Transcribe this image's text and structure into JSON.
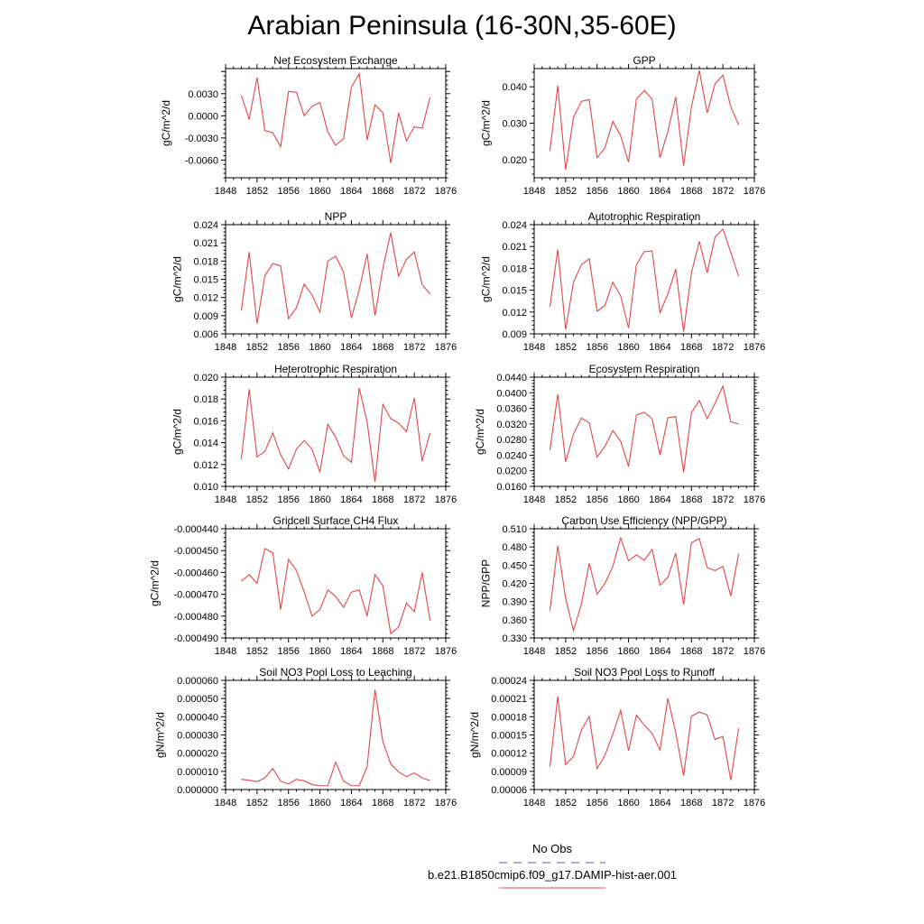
{
  "title": "Arabian Peninsula (16-30N,35-60E)",
  "legend": {
    "entries": [
      {
        "label": "No Obs",
        "color": "#5a5ad6",
        "style": "dashed"
      },
      {
        "label": "b.e21.B1850cmip6.f09_g17.DAMIP-hist-aer.001",
        "color": "#e0484a",
        "style": "solid"
      }
    ]
  },
  "chart_data": [
    {
      "type": "line",
      "title": "Net Ecosystem Exchange",
      "ylabel": "gC/m^2/d",
      "xlim": [
        1848,
        1876
      ],
      "ylim": [
        -0.0084,
        0.0064
      ],
      "xticks": [
        1848,
        1852,
        1856,
        1860,
        1864,
        1868,
        1872,
        1876
      ],
      "xtick_labels": [
        "1848",
        "1852",
        "1856",
        "1860",
        "1864",
        "1868",
        "1872",
        "1876"
      ],
      "yticks": [
        -0.006,
        -0.003,
        0.0,
        0.003
      ],
      "ytick_labels": [
        "-0.0060",
        "-0.0030",
        "0.0000",
        "0.0030"
      ],
      "x": [
        1850,
        1851,
        1852,
        1853,
        1854,
        1855,
        1856,
        1857,
        1858,
        1859,
        1860,
        1861,
        1862,
        1863,
        1864,
        1865,
        1866,
        1867,
        1868,
        1869,
        1870,
        1871,
        1872,
        1873,
        1874
      ],
      "series": [
        {
          "color": "#e0484a",
          "values": [
            0.0028,
            -0.0005,
            0.0052,
            -0.002,
            -0.0023,
            -0.0042,
            0.0033,
            0.0032,
            0.0,
            0.0013,
            0.0018,
            -0.0022,
            -0.004,
            -0.0031,
            0.0039,
            0.0057,
            -0.0033,
            0.0015,
            0.0004,
            -0.0064,
            0.0004,
            -0.0034,
            -0.0015,
            -0.0017,
            0.0025
          ]
        }
      ]
    },
    {
      "type": "line",
      "title": "GPP",
      "ylabel": "gC/m^2/d",
      "xlim": [
        1848,
        1876
      ],
      "ylim": [
        0.015,
        0.045
      ],
      "xticks": [
        1848,
        1852,
        1856,
        1860,
        1864,
        1868,
        1872,
        1876
      ],
      "xtick_labels": [
        "1848",
        "1852",
        "1856",
        "1860",
        "1864",
        "1868",
        "1872",
        "1876"
      ],
      "yticks": [
        0.02,
        0.03,
        0.04
      ],
      "ytick_labels": [
        "0.020",
        "0.030",
        "0.040"
      ],
      "x": [
        1850,
        1851,
        1852,
        1853,
        1854,
        1855,
        1856,
        1857,
        1858,
        1859,
        1860,
        1861,
        1862,
        1863,
        1864,
        1865,
        1866,
        1867,
        1868,
        1869,
        1870,
        1871,
        1872,
        1873,
        1874
      ],
      "series": [
        {
          "color": "#e0484a",
          "values": [
            0.0224,
            0.0403,
            0.0172,
            0.0316,
            0.036,
            0.0365,
            0.0205,
            0.0232,
            0.0305,
            0.0265,
            0.0193,
            0.0366,
            0.039,
            0.0366,
            0.0205,
            0.0277,
            0.0372,
            0.0183,
            0.0345,
            0.0445,
            0.0328,
            0.0408,
            0.0432,
            0.0345,
            0.0295
          ]
        }
      ]
    },
    {
      "type": "line",
      "title": "NPP",
      "ylabel": "gC/m^2/d",
      "xlim": [
        1848,
        1876
      ],
      "ylim": [
        0.006,
        0.024
      ],
      "xticks": [
        1848,
        1852,
        1856,
        1860,
        1864,
        1868,
        1872,
        1876
      ],
      "xtick_labels": [
        "1848",
        "1852",
        "1856",
        "1860",
        "1864",
        "1868",
        "1872",
        "1876"
      ],
      "yticks": [
        0.006,
        0.009,
        0.012,
        0.015,
        0.018,
        0.021,
        0.024
      ],
      "ytick_labels": [
        "0.006",
        "0.009",
        "0.012",
        "0.015",
        "0.018",
        "0.021",
        "0.024"
      ],
      "x": [
        1850,
        1851,
        1852,
        1853,
        1854,
        1855,
        1856,
        1857,
        1858,
        1859,
        1860,
        1861,
        1862,
        1863,
        1864,
        1865,
        1866,
        1867,
        1868,
        1869,
        1870,
        1871,
        1872,
        1873,
        1874
      ],
      "series": [
        {
          "color": "#e0484a",
          "values": [
            0.0098,
            0.0195,
            0.0077,
            0.0156,
            0.0176,
            0.0172,
            0.0085,
            0.0103,
            0.0142,
            0.0124,
            0.0096,
            0.018,
            0.0188,
            0.0162,
            0.0086,
            0.0133,
            0.0192,
            0.009,
            0.0168,
            0.0227,
            0.0155,
            0.0183,
            0.0195,
            0.0141,
            0.0126
          ]
        }
      ]
    },
    {
      "type": "line",
      "title": "Autotrophic Respiration",
      "ylabel": "gC/m^2/d",
      "xlim": [
        1848,
        1876
      ],
      "ylim": [
        0.009,
        0.024
      ],
      "xticks": [
        1848,
        1852,
        1856,
        1860,
        1864,
        1868,
        1872,
        1876
      ],
      "xtick_labels": [
        "1848",
        "1852",
        "1856",
        "1860",
        "1864",
        "1868",
        "1872",
        "1876"
      ],
      "yticks": [
        0.009,
        0.012,
        0.015,
        0.018,
        0.021,
        0.024
      ],
      "ytick_labels": [
        "0.009",
        "0.012",
        "0.015",
        "0.018",
        "0.021",
        "0.024"
      ],
      "x": [
        1850,
        1851,
        1852,
        1853,
        1854,
        1855,
        1856,
        1857,
        1858,
        1859,
        1860,
        1861,
        1862,
        1863,
        1864,
        1865,
        1866,
        1867,
        1868,
        1869,
        1870,
        1871,
        1872,
        1873,
        1874
      ],
      "series": [
        {
          "color": "#e0484a",
          "values": [
            0.0127,
            0.0206,
            0.0096,
            0.0161,
            0.0185,
            0.0193,
            0.0121,
            0.0129,
            0.0161,
            0.0142,
            0.0098,
            0.0185,
            0.0203,
            0.0204,
            0.0119,
            0.0145,
            0.0179,
            0.0093,
            0.0174,
            0.0217,
            0.0174,
            0.0223,
            0.0234,
            0.0202,
            0.0169
          ]
        }
      ]
    },
    {
      "type": "line",
      "title": "Heterotrophic Respiration",
      "ylabel": "gC/m^2/d",
      "xlim": [
        1848,
        1876
      ],
      "ylim": [
        0.01,
        0.02
      ],
      "xticks": [
        1848,
        1852,
        1856,
        1860,
        1864,
        1868,
        1872,
        1876
      ],
      "xtick_labels": [
        "1848",
        "1852",
        "1856",
        "1860",
        "1864",
        "1868",
        "1872",
        "1876"
      ],
      "yticks": [
        0.01,
        0.012,
        0.014,
        0.016,
        0.018,
        0.02
      ],
      "ytick_labels": [
        "0.010",
        "0.012",
        "0.014",
        "0.016",
        "0.018",
        "0.020"
      ],
      "x": [
        1850,
        1851,
        1852,
        1853,
        1854,
        1855,
        1856,
        1857,
        1858,
        1859,
        1860,
        1861,
        1862,
        1863,
        1864,
        1865,
        1866,
        1867,
        1868,
        1869,
        1870,
        1871,
        1872,
        1873,
        1874
      ],
      "series": [
        {
          "color": "#e0484a",
          "values": [
            0.0125,
            0.0189,
            0.0127,
            0.0132,
            0.0149,
            0.0129,
            0.0116,
            0.0134,
            0.0142,
            0.0134,
            0.0113,
            0.0157,
            0.0145,
            0.0128,
            0.0122,
            0.019,
            0.0159,
            0.0104,
            0.0175,
            0.0162,
            0.0158,
            0.015,
            0.0181,
            0.0123,
            0.0149
          ]
        }
      ]
    },
    {
      "type": "line",
      "title": "Ecosystem Respiration",
      "ylabel": "gC/m^2/d",
      "xlim": [
        1848,
        1876
      ],
      "ylim": [
        0.016,
        0.044
      ],
      "xticks": [
        1848,
        1852,
        1856,
        1860,
        1864,
        1868,
        1872,
        1876
      ],
      "xtick_labels": [
        "1848",
        "1852",
        "1856",
        "1860",
        "1864",
        "1868",
        "1872",
        "1876"
      ],
      "yticks": [
        0.016,
        0.02,
        0.024,
        0.028,
        0.032,
        0.036,
        0.04,
        0.044
      ],
      "ytick_labels": [
        "0.0160",
        "0.0200",
        "0.0240",
        "0.0280",
        "0.0320",
        "0.0360",
        "0.0400",
        "0.0440"
      ],
      "x": [
        1850,
        1851,
        1852,
        1853,
        1854,
        1855,
        1856,
        1857,
        1858,
        1859,
        1860,
        1861,
        1862,
        1863,
        1864,
        1865,
        1866,
        1867,
        1868,
        1869,
        1870,
        1871,
        1872,
        1873,
        1874
      ],
      "series": [
        {
          "color": "#e0484a",
          "values": [
            0.0253,
            0.0396,
            0.0223,
            0.0294,
            0.0335,
            0.0323,
            0.0235,
            0.0263,
            0.0303,
            0.0276,
            0.0211,
            0.0343,
            0.035,
            0.0333,
            0.024,
            0.0336,
            0.0339,
            0.0196,
            0.0349,
            0.038,
            0.0333,
            0.0373,
            0.0417,
            0.0326,
            0.032
          ]
        }
      ]
    },
    {
      "type": "line",
      "title": "Gridcell Surface CH4 Flux",
      "ylabel": "gC/m^2/d",
      "xlim": [
        1848,
        1876
      ],
      "ylim": [
        -0.00049,
        -0.00044
      ],
      "xticks": [
        1848,
        1852,
        1856,
        1860,
        1864,
        1868,
        1872,
        1876
      ],
      "xtick_labels": [
        "1848",
        "1852",
        "1856",
        "1860",
        "1864",
        "1868",
        "1872",
        "1876"
      ],
      "yticks": [
        -0.00049,
        -0.00048,
        -0.00047,
        -0.00046,
        -0.00045,
        -0.00044
      ],
      "ytick_labels": [
        "-0.000490",
        "-0.000480",
        "-0.000470",
        "-0.000460",
        "-0.000450",
        "-0.000440"
      ],
      "x": [
        1850,
        1851,
        1852,
        1853,
        1854,
        1855,
        1856,
        1857,
        1858,
        1859,
        1860,
        1861,
        1862,
        1863,
        1864,
        1865,
        1866,
        1867,
        1868,
        1869,
        1870,
        1871,
        1872,
        1873,
        1874
      ],
      "series": [
        {
          "color": "#e0484a",
          "values": [
            -0.000464,
            -0.000461,
            -0.000465,
            -0.000449,
            -0.000451,
            -0.000477,
            -0.000454,
            -0.000459,
            -0.000469,
            -0.00048,
            -0.000477,
            -0.000468,
            -0.000471,
            -0.000476,
            -0.000469,
            -0.000468,
            -0.00048,
            -0.000461,
            -0.000466,
            -0.000488,
            -0.000485,
            -0.000474,
            -0.000478,
            -0.00046,
            -0.000482
          ]
        }
      ]
    },
    {
      "type": "line",
      "title": "Carbon Use Efficiency (NPP/GPP)",
      "ylabel": "NPP/GPP",
      "xlim": [
        1848,
        1876
      ],
      "ylim": [
        0.33,
        0.51
      ],
      "xticks": [
        1848,
        1852,
        1856,
        1860,
        1864,
        1868,
        1872,
        1876
      ],
      "xtick_labels": [
        "1848",
        "1852",
        "1856",
        "1860",
        "1864",
        "1868",
        "1872",
        "1876"
      ],
      "yticks": [
        0.33,
        0.36,
        0.39,
        0.42,
        0.45,
        0.48,
        0.51
      ],
      "ytick_labels": [
        "0.330",
        "0.360",
        "0.390",
        "0.420",
        "0.450",
        "0.480",
        "0.510"
      ],
      "x": [
        1850,
        1851,
        1852,
        1853,
        1854,
        1855,
        1856,
        1857,
        1858,
        1859,
        1860,
        1861,
        1862,
        1863,
        1864,
        1865,
        1866,
        1867,
        1868,
        1869,
        1870,
        1871,
        1872,
        1873,
        1874
      ],
      "series": [
        {
          "color": "#e0484a",
          "values": [
            0.375,
            0.482,
            0.395,
            0.342,
            0.386,
            0.453,
            0.402,
            0.42,
            0.448,
            0.495,
            0.457,
            0.467,
            0.458,
            0.476,
            0.417,
            0.43,
            0.47,
            0.385,
            0.487,
            0.494,
            0.446,
            0.441,
            0.448,
            0.399,
            0.469
          ]
        }
      ]
    },
    {
      "type": "line",
      "title": "Soil NO3 Pool Loss to Leaching",
      "ylabel": "gN/m^2/d",
      "xlim": [
        1848,
        1876
      ],
      "ylim": [
        0.0,
        6e-05
      ],
      "xticks": [
        1848,
        1852,
        1856,
        1860,
        1864,
        1868,
        1872,
        1876
      ],
      "xtick_labels": [
        "1848",
        "1852",
        "1856",
        "1860",
        "1864",
        "1868",
        "1872",
        "1876"
      ],
      "yticks": [
        0.0,
        1e-05,
        2e-05,
        3e-05,
        4e-05,
        5e-05,
        6e-05
      ],
      "ytick_labels": [
        "0.000000",
        "0.000010",
        "0.000020",
        "0.000030",
        "0.000040",
        "0.000050",
        "0.000060"
      ],
      "x": [
        1850,
        1851,
        1852,
        1853,
        1854,
        1855,
        1856,
        1857,
        1858,
        1859,
        1860,
        1861,
        1862,
        1863,
        1864,
        1865,
        1866,
        1867,
        1868,
        1869,
        1870,
        1871,
        1872,
        1873,
        1874
      ],
      "series": [
        {
          "color": "#e0484a",
          "values": [
            5.6e-06,
            5.1e-06,
            4.4e-06,
            6.4e-06,
            1.16e-05,
            4.6e-06,
            3.1e-06,
            5.6e-06,
            4.8e-06,
            2.7e-06,
            2.1e-06,
            2.1e-06,
            1.51e-05,
            4.6e-06,
            2.1e-06,
            2.1e-06,
            1.26e-05,
            5.49e-05,
            2.63e-05,
            1.41e-05,
            9.7e-06,
            7.1e-06,
            9.1e-06,
            6.4e-06,
            4.9e-06
          ]
        }
      ]
    },
    {
      "type": "line",
      "title": "Soil NO3 Pool Loss to Runoff",
      "ylabel": "gN/m^2/d",
      "xlim": [
        1848,
        1876
      ],
      "ylim": [
        6e-05,
        0.00024
      ],
      "xticks": [
        1848,
        1852,
        1856,
        1860,
        1864,
        1868,
        1872,
        1876
      ],
      "xtick_labels": [
        "1848",
        "1852",
        "1856",
        "1860",
        "1864",
        "1868",
        "1872",
        "1876"
      ],
      "yticks": [
        6e-05,
        9e-05,
        0.00012,
        0.00015,
        0.00018,
        0.00021,
        0.00024
      ],
      "ytick_labels": [
        "0.00006",
        "0.00009",
        "0.00012",
        "0.00015",
        "0.00018",
        "0.00021",
        "0.00024"
      ],
      "x": [
        1850,
        1851,
        1852,
        1853,
        1854,
        1855,
        1856,
        1857,
        1858,
        1859,
        1860,
        1861,
        1862,
        1863,
        1864,
        1865,
        1866,
        1867,
        1868,
        1869,
        1870,
        1871,
        1872,
        1873,
        1874
      ],
      "series": [
        {
          "color": "#e0484a",
          "values": [
            9.75e-05,
            0.0002135,
            0.000101,
            0.0001145,
            0.000158,
            0.0001805,
            9.45e-05,
            0.0001165,
            0.0001515,
            0.0001905,
            0.000124,
            0.0001825,
            0.0001665,
            0.0001525,
            0.000125,
            0.0002105,
            0.000154,
            8.25e-05,
            0.000181,
            0.000188,
            0.000183,
            0.0001425,
            0.0001475,
            7.55e-05,
            0.000161
          ]
        }
      ]
    }
  ]
}
